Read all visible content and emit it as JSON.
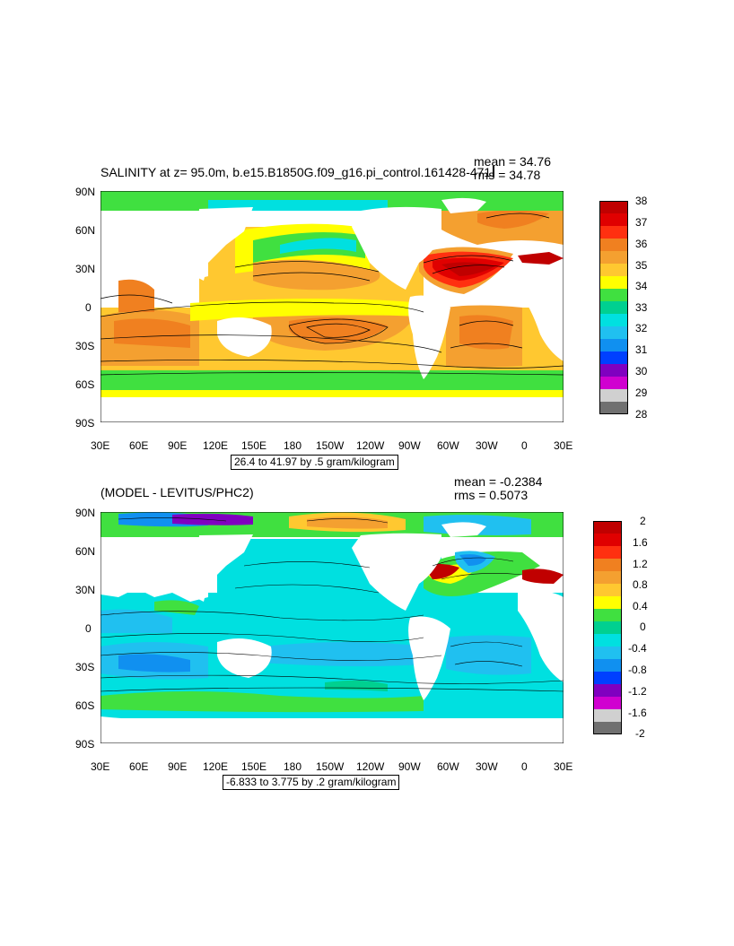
{
  "panels": [
    {
      "title": "SALINITY at z=  95.0m, b.e15.B1850G.f09_g16.pi_control.16",
      "title_suffix": "1428-471",
      "stats_mean": "mean = 34.76",
      "stats_rms": "rms = 34.78",
      "contour_info": "26.4 to 41.97 by .5 gram/kilogram",
      "colorbar": {
        "labels": [
          "38",
          "37",
          "36",
          "35",
          "34",
          "33",
          "32",
          "31",
          "30",
          "29",
          "28"
        ],
        "colors": [
          "#c00000",
          "#e00000",
          "#ff3010",
          "#f08020",
          "#f4a030",
          "#ffc830",
          "#ffff00",
          "#40e040",
          "#00d090",
          "#00e0e0",
          "#20c0f0",
          "#1090f0",
          "#0040ff",
          "#8000c0",
          "#d000d0",
          "#d0d0d0",
          "#707070"
        ]
      }
    },
    {
      "title": "(MODEL - LEVITUS/PHC2)",
      "stats_mean": "mean = -0.2384",
      "stats_rms": "rms = 0.5073",
      "contour_info": "-6.833 to 3.775 by .2 gram/kilogram",
      "colorbar": {
        "labels": [
          "2",
          "1.6",
          "1.2",
          "0.8",
          "0.4",
          "0",
          "-0.4",
          "-0.8",
          "-1.2",
          "-1.6",
          "-2"
        ],
        "colors": [
          "#c00000",
          "#e00000",
          "#ff3010",
          "#f08020",
          "#f4a030",
          "#ffc830",
          "#ffff00",
          "#40e040",
          "#00d090",
          "#00e0e0",
          "#20c0f0",
          "#1090f0",
          "#0040ff",
          "#8000c0",
          "#d000d0",
          "#d0d0d0",
          "#707070"
        ]
      }
    }
  ],
  "axes": {
    "lat_labels": [
      "90N",
      "60N",
      "30N",
      "0",
      "30S",
      "60S",
      "90S"
    ],
    "lon_labels": [
      "30E",
      "60E",
      "90E",
      "120E",
      "150E",
      "180",
      "150W",
      "120W",
      "90W",
      "60W",
      "30W",
      "0",
      "30E"
    ]
  }
}
